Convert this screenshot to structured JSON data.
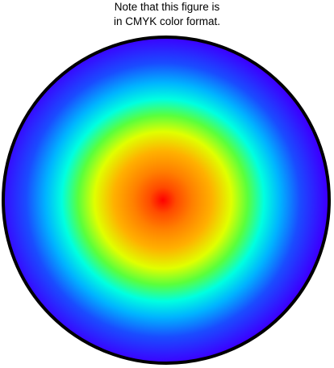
{
  "note": {
    "line1": "Note that this figure is",
    "line2": "in CMYK color format."
  },
  "figure": {
    "shape": "circle",
    "fill": "radial gradient",
    "border_color": "#000000",
    "gradient_stops": [
      {
        "offset": 0.0,
        "color": "#ff0000"
      },
      {
        "offset": 0.08,
        "color": "#ff4a00"
      },
      {
        "offset": 0.18,
        "color": "#ff7f00"
      },
      {
        "offset": 0.3,
        "color": "#ffb000"
      },
      {
        "offset": 0.42,
        "color": "#e0ff00"
      },
      {
        "offset": 0.52,
        "color": "#5aff3c"
      },
      {
        "offset": 0.62,
        "color": "#00ffe0"
      },
      {
        "offset": 0.72,
        "color": "#00b4ff"
      },
      {
        "offset": 0.84,
        "color": "#1a4cff"
      },
      {
        "offset": 1.0,
        "color": "#3b00ff"
      }
    ]
  }
}
